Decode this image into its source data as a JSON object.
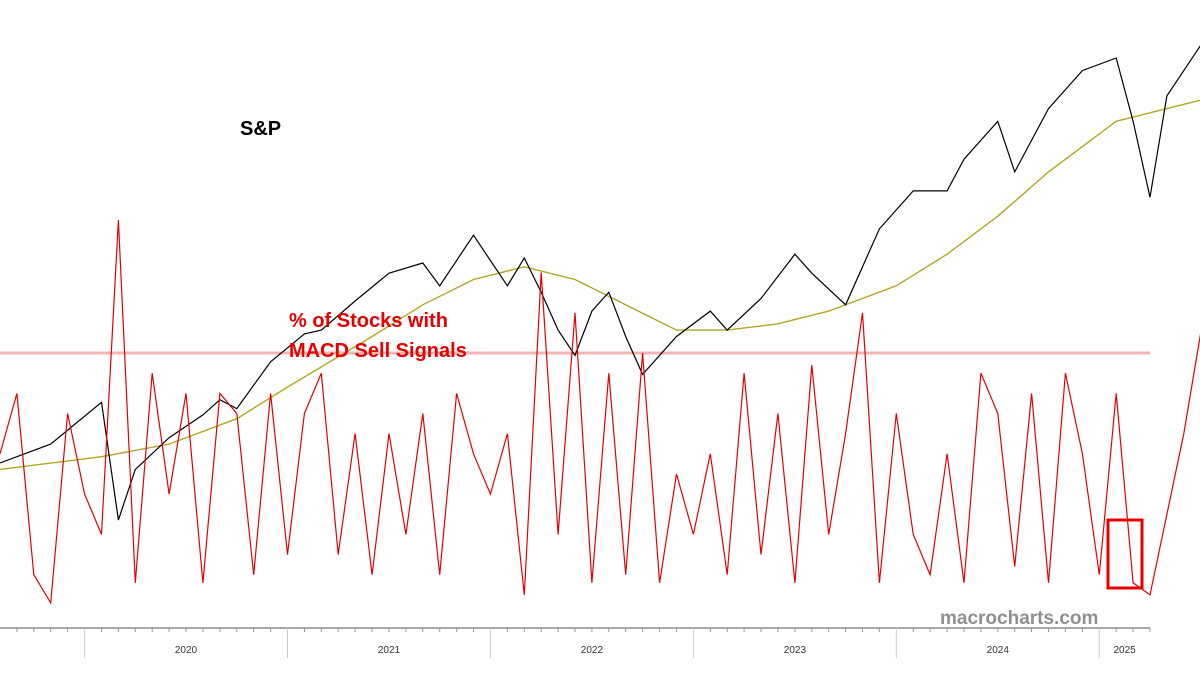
{
  "chart_data": {
    "type": "line",
    "x_range": [
      "2019-08",
      "2025-04"
    ],
    "tick_labels": [
      "2020",
      "2021",
      "2022",
      "2023",
      "2024",
      "2025"
    ],
    "annotations": {
      "sp_label": "S&P",
      "macd_label_line1": "% of Stocks with",
      "macd_label_line2": "MACD Sell Signals",
      "watermark": "macrocharts.com"
    },
    "colors": {
      "sp_line": "#000000",
      "moving_average": "#b3a623",
      "macd_line": "#e60000",
      "threshold_line": "#f4b4b4",
      "highlight_box": "#e60000",
      "watermark": "#909090",
      "axis": "#555555"
    },
    "series": [
      {
        "key": "sp",
        "x": [
          "2019-08",
          "2019-11",
          "2020-02",
          "2020-03",
          "2020-04",
          "2020-06",
          "2020-08",
          "2020-09",
          "2020-10",
          "2020-12",
          "2021-02",
          "2021-03",
          "2021-05",
          "2021-07",
          "2021-09",
          "2021-10",
          "2021-12",
          "2022-01",
          "2022-02",
          "2022-03",
          "2022-04",
          "2022-05",
          "2022-06",
          "2022-07",
          "2022-08",
          "2022-09",
          "2022-10",
          "2022-12",
          "2023-02",
          "2023-03",
          "2023-05",
          "2023-07",
          "2023-08",
          "2023-10",
          "2023-12",
          "2024-02",
          "2024-04",
          "2024-05",
          "2024-07",
          "2024-08",
          "2024-10",
          "2024-12",
          "2025-02",
          "2025-03",
          "2025-04",
          "2025-05",
          "2025-06",
          "2025-07",
          "2025-08"
        ],
        "y": [
          2900,
          3050,
          3380,
          2450,
          2850,
          3100,
          3280,
          3400,
          3330,
          3700,
          3920,
          3950,
          4180,
          4400,
          4480,
          4300,
          4700,
          4500,
          4300,
          4520,
          4250,
          3950,
          3750,
          4100,
          4250,
          3900,
          3600,
          3900,
          4100,
          3950,
          4200,
          4550,
          4400,
          4150,
          4750,
          5050,
          5050,
          5300,
          5600,
          5200,
          5700,
          6000,
          6100,
          5600,
          5000,
          5800,
          6000,
          6200,
          6400
        ]
      },
      {
        "key": "ma200",
        "x": [
          "2019-08",
          "2020-02",
          "2020-06",
          "2020-10",
          "2021-01",
          "2021-06",
          "2021-09",
          "2021-12",
          "2022-03",
          "2022-06",
          "2022-09",
          "2022-12",
          "2023-03",
          "2023-06",
          "2023-09",
          "2024-01",
          "2024-04",
          "2024-07",
          "2024-10",
          "2025-02",
          "2025-05",
          "2025-08"
        ],
        "y": [
          2850,
          2950,
          3050,
          3250,
          3500,
          3900,
          4150,
          4350,
          4450,
          4350,
          4150,
          3950,
          3950,
          4000,
          4100,
          4300,
          4550,
          4850,
          5200,
          5600,
          5700,
          5800
        ]
      },
      {
        "key": "macd_sell",
        "x": [
          "2019-08",
          "2019-09",
          "2019-10",
          "2019-11",
          "2019-12",
          "2020-01",
          "2020-02",
          "2020-03",
          "2020-04",
          "2020-05",
          "2020-06",
          "2020-07",
          "2020-08",
          "2020-09",
          "2020-10",
          "2020-11",
          "2020-12",
          "2021-01",
          "2021-02",
          "2021-03",
          "2021-04",
          "2021-05",
          "2021-06",
          "2021-07",
          "2021-08",
          "2021-09",
          "2021-10",
          "2021-11",
          "2021-12",
          "2022-01",
          "2022-02",
          "2022-03",
          "2022-04",
          "2022-05",
          "2022-06",
          "2022-07",
          "2022-08",
          "2022-09",
          "2022-10",
          "2022-11",
          "2022-12",
          "2023-01",
          "2023-02",
          "2023-03",
          "2023-04",
          "2023-05",
          "2023-06",
          "2023-07",
          "2023-08",
          "2023-09",
          "2023-10",
          "2023-11",
          "2023-12",
          "2024-01",
          "2024-02",
          "2024-03",
          "2024-04",
          "2024-05",
          "2024-06",
          "2024-07",
          "2024-08",
          "2024-09",
          "2024-10",
          "2024-11",
          "2024-12",
          "2025-01",
          "2025-02",
          "2025-03",
          "2025-04",
          "2025-05",
          "2025-06",
          "2025-07",
          "2025-08"
        ],
        "y": [
          40,
          55,
          10,
          3,
          50,
          30,
          20,
          98,
          8,
          60,
          30,
          55,
          8,
          55,
          50,
          10,
          55,
          15,
          50,
          60,
          15,
          45,
          10,
          45,
          20,
          50,
          10,
          55,
          40,
          30,
          45,
          5,
          85,
          20,
          75,
          8,
          60,
          10,
          65,
          8,
          35,
          20,
          40,
          10,
          60,
          15,
          50,
          8,
          62,
          20,
          45,
          75,
          8,
          50,
          20,
          10,
          40,
          8,
          60,
          50,
          12,
          55,
          8,
          60,
          40,
          10,
          55,
          8,
          5,
          25,
          45,
          70,
          25
        ]
      }
    ],
    "threshold_value": 65,
    "grid": false,
    "legend": "none"
  }
}
